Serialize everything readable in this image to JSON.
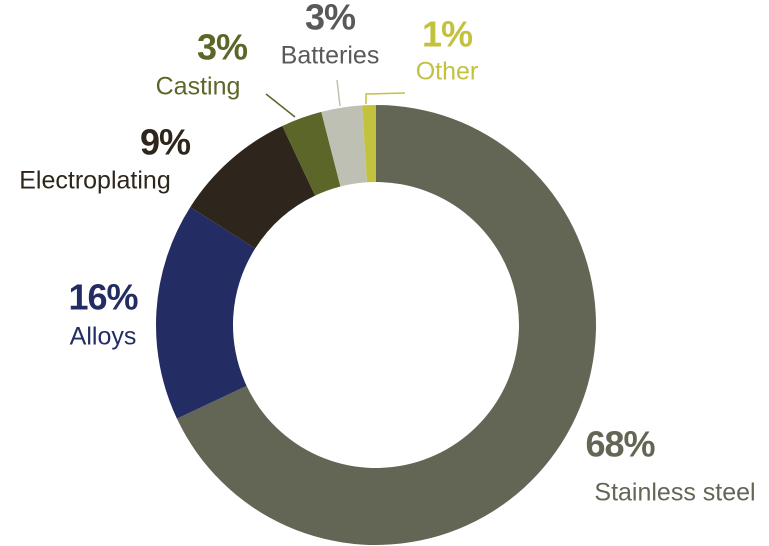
{
  "chart_data": {
    "type": "donut",
    "categories": [
      "Stainless steel",
      "Alloys",
      "Electroplating",
      "Casting",
      "Batteries",
      "Other"
    ],
    "values": [
      68,
      16,
      9,
      3,
      3,
      1
    ],
    "value_labels": [
      "68%",
      "16%",
      "9%",
      "3%",
      "3%",
      "1%"
    ],
    "colors": [
      "#636555",
      "#242d63",
      "#2e261c",
      "#5c6628",
      "#bfc0b4",
      "#c3c23e"
    ],
    "label_colors": [
      "#636555",
      "#242d63",
      "#2e261c",
      "#5c6628",
      "#58595b",
      "#c3c23e"
    ]
  }
}
